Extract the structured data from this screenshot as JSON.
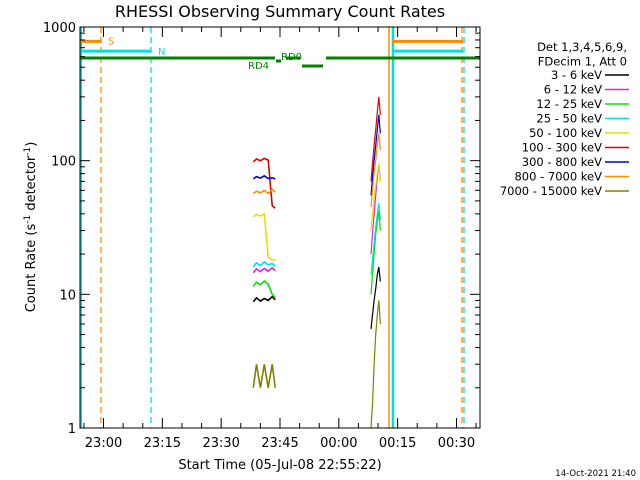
{
  "chart_data": {
    "type": "line",
    "title": "RHESSI Observing Summary Count Rates",
    "xlabel": "Start Time (05-Jul-08 22:55:22)",
    "ylabel": "Count Rate (s",
    "ylabel_sup1": "-1",
    "ylabel_mid": " detector",
    "ylabel_sup2": "-1",
    "ylabel_end": ")",
    "yscale": "log",
    "ylim": [
      1,
      1000
    ],
    "xlim_minutes": [
      -5,
      35
    ],
    "x_ticks": [
      {
        "m": -60,
        "label": "23:00"
      },
      {
        "m": -45,
        "label": "23:15"
      },
      {
        "m": -30,
        "label": "23:30"
      },
      {
        "m": -15,
        "label": "23:45"
      },
      {
        "m": 0,
        "label": "00:00"
      },
      {
        "m": 15,
        "label": "00:15"
      },
      {
        "m": 30,
        "label": "00:30"
      }
    ],
    "y_ticks": [
      {
        "v": 1,
        "label": "1"
      },
      {
        "v": 10,
        "label": "10"
      },
      {
        "v": 100,
        "label": "100"
      },
      {
        "v": 1000,
        "label": "1000"
      }
    ],
    "legend_header": [
      "Det 1,3,4,5,6,9,",
      "FDecim 1, Att 0"
    ],
    "legend_placement": "right",
    "series": [
      {
        "name": "3 - 6 keV",
        "color": "#000000",
        "seg1": [
          [
            -21.8,
            8.8
          ],
          [
            -21.0,
            9.4
          ],
          [
            -20.0,
            8.9
          ],
          [
            -19.0,
            9.3
          ],
          [
            -18.0,
            9.0
          ],
          [
            -17.0,
            9.6
          ],
          [
            -16.2,
            9.1
          ]
        ],
        "seg2": [
          [
            8.2,
            5.5
          ],
          [
            8.6,
            7.0
          ],
          [
            9.0,
            9.0
          ],
          [
            9.4,
            11.0
          ],
          [
            9.8,
            14.0
          ],
          [
            10.2,
            16.0
          ],
          [
            10.6,
            12.5
          ]
        ]
      },
      {
        "name": "6 - 12 keV",
        "color": "#e020e0",
        "seg1": [
          [
            -21.8,
            14.5
          ],
          [
            -21.0,
            15.5
          ],
          [
            -20.0,
            14.8
          ],
          [
            -19.0,
            15.6
          ],
          [
            -18.0,
            14.9
          ],
          [
            -17.0,
            15.8
          ],
          [
            -16.2,
            15.0
          ]
        ],
        "seg2": [
          [
            8.2,
            20.0
          ],
          [
            8.6,
            28.0
          ],
          [
            9.0,
            40.0
          ],
          [
            9.4,
            55.0
          ],
          [
            9.8,
            75.0
          ],
          [
            10.2,
            95.0
          ],
          [
            10.6,
            70.0
          ]
        ]
      },
      {
        "name": "12 - 25 keV",
        "color": "#00e000",
        "seg1": [
          [
            -21.8,
            11.5
          ],
          [
            -21.0,
            12.3
          ],
          [
            -20.0,
            11.8
          ],
          [
            -19.0,
            12.6
          ],
          [
            -18.0,
            11.9
          ],
          [
            -17.0,
            10.0
          ],
          [
            -16.2,
            9.5
          ]
        ],
        "seg2": [
          [
            8.2,
            10.0
          ],
          [
            8.6,
            14.0
          ],
          [
            9.0,
            20.0
          ],
          [
            9.4,
            28.0
          ],
          [
            9.8,
            35.0
          ],
          [
            10.2,
            42.0
          ],
          [
            10.6,
            30.0
          ]
        ]
      },
      {
        "name": "25 - 50 keV",
        "color": "#00e0e0",
        "seg1": [
          [
            -21.8,
            16.0
          ],
          [
            -21.0,
            17.2
          ],
          [
            -20.0,
            16.4
          ],
          [
            -19.0,
            17.5
          ],
          [
            -18.0,
            16.6
          ],
          [
            -17.0,
            17.0
          ],
          [
            -16.2,
            16.2
          ]
        ],
        "seg2": [
          [
            8.2,
            14.0
          ],
          [
            8.6,
            18.0
          ],
          [
            9.0,
            24.0
          ],
          [
            9.4,
            32.0
          ],
          [
            9.8,
            40.0
          ],
          [
            10.2,
            48.0
          ],
          [
            10.6,
            36.0
          ]
        ]
      },
      {
        "name": "50 - 100 keV",
        "color": "#e0e000",
        "seg1": [
          [
            -21.8,
            38.0
          ],
          [
            -21.0,
            39.5
          ],
          [
            -20.0,
            38.6
          ],
          [
            -19.0,
            40.0
          ],
          [
            -18.0,
            19.0
          ],
          [
            -17.0,
            18.2
          ],
          [
            -16.2,
            18.0
          ]
        ],
        "seg2": [
          [
            8.2,
            30.0
          ],
          [
            8.6,
            40.0
          ],
          [
            9.0,
            52.0
          ],
          [
            9.4,
            65.0
          ],
          [
            9.8,
            80.0
          ],
          [
            10.2,
            95.0
          ],
          [
            10.6,
            70.0
          ]
        ]
      },
      {
        "name": "100 - 300 keV",
        "color": "#e00000",
        "seg1": [
          [
            -21.8,
            98.0
          ],
          [
            -21.0,
            103.0
          ],
          [
            -20.0,
            100.0
          ],
          [
            -19.0,
            104.0
          ],
          [
            -18.0,
            101.0
          ],
          [
            -17.0,
            46.0
          ],
          [
            -16.2,
            44.0
          ]
        ],
        "seg2": [
          [
            8.2,
            70.0
          ],
          [
            8.6,
            95.0
          ],
          [
            9.0,
            130.0
          ],
          [
            9.4,
            170.0
          ],
          [
            9.8,
            230.0
          ],
          [
            10.2,
            300.0
          ],
          [
            10.6,
            220.0
          ]
        ]
      },
      {
        "name": "300 - 800 keV",
        "color": "#0000d0",
        "seg1": [
          [
            -21.8,
            73.0
          ],
          [
            -21.0,
            76.0
          ],
          [
            -20.0,
            74.0
          ],
          [
            -19.0,
            77.0
          ],
          [
            -18.0,
            73.5
          ],
          [
            -17.0,
            74.5
          ],
          [
            -16.2,
            73.0
          ]
        ],
        "seg2": [
          [
            8.2,
            55.0
          ],
          [
            8.6,
            75.0
          ],
          [
            9.0,
            100.0
          ],
          [
            9.4,
            130.0
          ],
          [
            9.8,
            170.0
          ],
          [
            10.2,
            220.0
          ],
          [
            10.6,
            160.0
          ]
        ]
      },
      {
        "name": "800 - 7000 keV",
        "color": "#ff8c00",
        "seg1": [
          [
            -21.8,
            57.0
          ],
          [
            -21.0,
            59.0
          ],
          [
            -20.0,
            57.5
          ],
          [
            -19.0,
            60.0
          ],
          [
            -18.0,
            57.0
          ],
          [
            -17.0,
            61.0
          ],
          [
            -16.2,
            58.0
          ]
        ],
        "seg2": [
          [
            8.2,
            45.0
          ],
          [
            8.6,
            60.0
          ],
          [
            9.0,
            80.0
          ],
          [
            9.4,
            100.0
          ],
          [
            9.8,
            130.0
          ],
          [
            10.2,
            160.0
          ],
          [
            10.6,
            120.0
          ]
        ]
      },
      {
        "name": "7000 - 15000 keV",
        "color": "#808000",
        "seg1": [
          [
            -21.8,
            2.0
          ],
          [
            -21.0,
            3.0
          ],
          [
            -20.0,
            2.0
          ],
          [
            -19.0,
            3.0
          ],
          [
            -18.0,
            2.0
          ],
          [
            -17.0,
            3.0
          ],
          [
            -16.2,
            2.0
          ]
        ],
        "seg2": [
          [
            8.2,
            1.0
          ],
          [
            8.6,
            1.5
          ],
          [
            9.0,
            3.0
          ],
          [
            9.4,
            5.0
          ],
          [
            9.8,
            7.0
          ],
          [
            10.2,
            9.0
          ],
          [
            10.6,
            6.0
          ]
        ]
      }
    ],
    "flags": [
      {
        "label": "S",
        "color": "#ff8c00",
        "y": 780
      },
      {
        "label": "N",
        "color": "#00e0e0",
        "y": 660
      }
    ],
    "orbit_labels": [
      "RD0",
      "RD4"
    ],
    "timestamp": "14-Oct-2021 21:40"
  }
}
